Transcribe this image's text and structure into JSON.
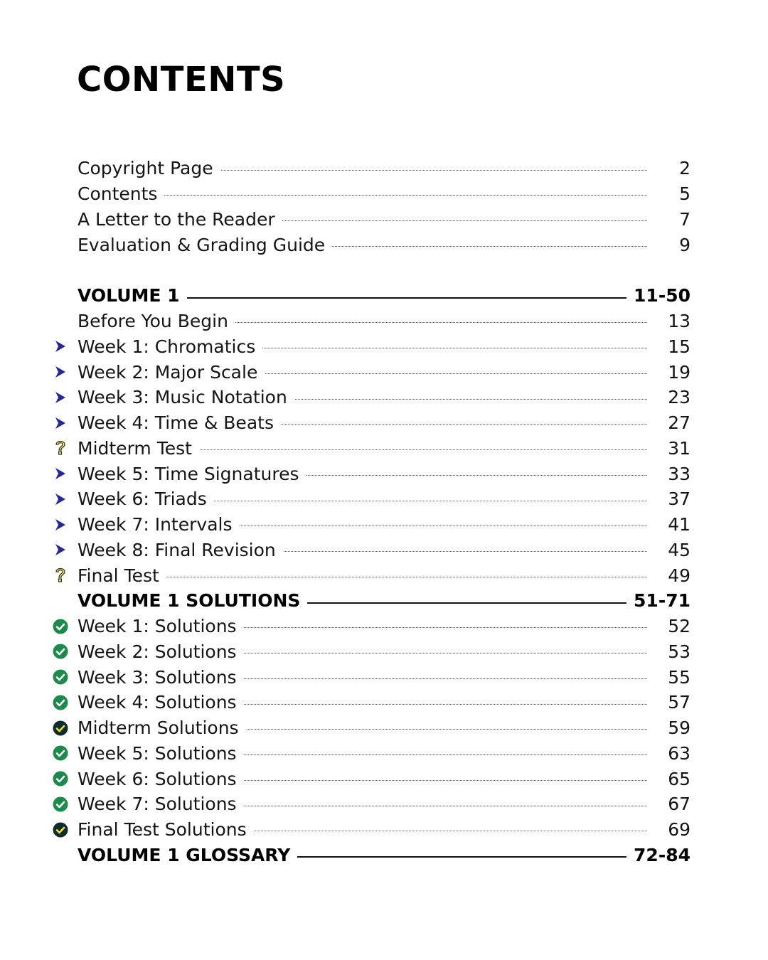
{
  "title": "CONTENTS",
  "colors": {
    "arrow": "#27279a",
    "check_green": "#1b8a4b",
    "check_dark": "#0f2c2c",
    "check_yellow": "#f2e21b",
    "question": "#f5e23a"
  },
  "sections": [
    {
      "items": [
        {
          "type": "entry",
          "label": "Copyright Page",
          "page": "2"
        },
        {
          "type": "entry",
          "label": "Contents",
          "page": "5"
        },
        {
          "type": "entry",
          "label": "A Letter to the Reader",
          "page": "7"
        },
        {
          "type": "entry",
          "label": "Evaluation & Grading Guide",
          "page": "9"
        }
      ]
    },
    {
      "items": [
        {
          "type": "volume",
          "label": "VOLUME 1",
          "page": "11-50"
        },
        {
          "type": "entry",
          "label": "Before You Begin",
          "page": "13"
        },
        {
          "type": "entry",
          "icon": "arrow-icon",
          "label": "Week 1: Chromatics",
          "page": "15"
        },
        {
          "type": "entry",
          "icon": "arrow-icon",
          "label": "Week 2: Major Scale",
          "page": "19"
        },
        {
          "type": "entry",
          "icon": "arrow-icon",
          "label": "Week 3: Music Notation",
          "page": "23"
        },
        {
          "type": "entry",
          "icon": "arrow-icon",
          "label": "Week 4: Time & Beats",
          "page": "27"
        },
        {
          "type": "entry",
          "icon": "question-icon",
          "label": "Midterm Test",
          "page": "31"
        },
        {
          "type": "entry",
          "icon": "arrow-icon",
          "label": "Week 5: Time Signatures",
          "page": "33"
        },
        {
          "type": "entry",
          "icon": "arrow-icon",
          "label": "Week 6: Triads",
          "page": "37"
        },
        {
          "type": "entry",
          "icon": "arrow-icon",
          "label": "Week 7: Intervals",
          "page": "41"
        },
        {
          "type": "entry",
          "icon": "arrow-icon",
          "label": "Week 8: Final Revision",
          "page": "45"
        },
        {
          "type": "entry",
          "icon": "question-icon",
          "label": "Final Test",
          "page": "49"
        },
        {
          "type": "volume",
          "label": "VOLUME 1 SOLUTIONS",
          "page": "51-71"
        },
        {
          "type": "entry",
          "icon": "check-green-icon",
          "label": "Week 1: Solutions",
          "page": "52"
        },
        {
          "type": "entry",
          "icon": "check-green-icon",
          "label": "Week 2: Solutions",
          "page": "53"
        },
        {
          "type": "entry",
          "icon": "check-green-icon",
          "label": "Week 3: Solutions",
          "page": "55"
        },
        {
          "type": "entry",
          "icon": "check-green-icon",
          "label": "Week 4: Solutions",
          "page": "57"
        },
        {
          "type": "entry",
          "icon": "check-dark-icon",
          "label": "Midterm Solutions",
          "page": "59"
        },
        {
          "type": "entry",
          "icon": "check-green-icon",
          "label": "Week 5: Solutions",
          "page": "63"
        },
        {
          "type": "entry",
          "icon": "check-green-icon",
          "label": "Week 6: Solutions",
          "page": "65"
        },
        {
          "type": "entry",
          "icon": "check-green-icon",
          "label": "Week 7: Solutions",
          "page": "67"
        },
        {
          "type": "entry",
          "icon": "check-dark-icon",
          "label": "Final Test Solutions",
          "page": "69"
        },
        {
          "type": "volume",
          "label": "VOLUME 1 GLOSSARY",
          "page": "72-84"
        }
      ]
    }
  ]
}
